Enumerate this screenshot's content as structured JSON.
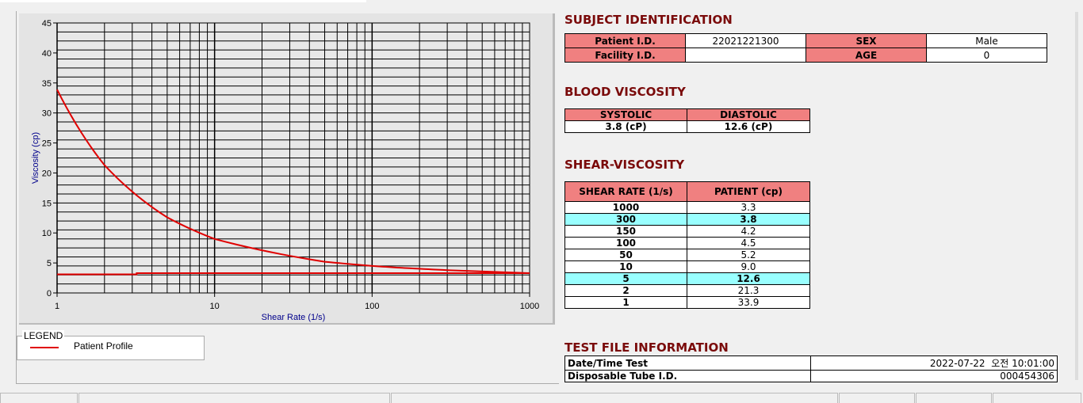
{
  "chart_data": {
    "type": "line",
    "xlabel": "Shear Rate (1/s)",
    "ylabel": "Viscosity (cp)",
    "xscale": "log",
    "xlim": [
      1,
      1000
    ],
    "ylim": [
      0,
      45
    ],
    "xticks": [
      "1",
      "10",
      "100",
      "1000"
    ],
    "yticks": [
      "0",
      "5",
      "10",
      "15",
      "20",
      "25",
      "30",
      "35",
      "40",
      "45"
    ],
    "grid": true,
    "legend_position": "below",
    "series": [
      {
        "name": "Patient Profile",
        "color": "#e00000",
        "x": [
          1,
          2,
          5,
          10,
          50,
          100,
          150,
          300,
          1000
        ],
        "y": [
          33.9,
          21.3,
          12.6,
          9.0,
          5.2,
          4.5,
          4.2,
          3.8,
          3.3
        ]
      },
      {
        "color": "#e00000",
        "x": [
          1,
          3.2,
          3.2,
          1000
        ],
        "y": [
          3.1,
          3.1,
          3.3,
          3.3
        ]
      }
    ]
  },
  "legend": {
    "title": "LEGEND",
    "items": [
      "Patient Profile"
    ]
  },
  "subject": {
    "title": "SUBJECT IDENTIFICATION",
    "patient_id_label": "Patient I.D.",
    "patient_id": "22021221300",
    "sex_label": "SEX",
    "sex": "Male",
    "facility_label": "Facility I.D.",
    "facility": "",
    "age_label": "AGE",
    "age": "0"
  },
  "blood": {
    "title": "BLOOD VISCOSITY",
    "systolic_label": "SYSTOLIC",
    "diastolic_label": "DIASTOLIC",
    "systolic": "3.8 (cP)",
    "diastolic": "12.6 (cP)"
  },
  "shear": {
    "title": "SHEAR-VISCOSITY",
    "col1": "SHEAR RATE (1/s)",
    "col2": "PATIENT (cp)",
    "highlight_color": "#99ffff",
    "rows": [
      [
        "1000",
        "3.3"
      ],
      [
        "300",
        "3.8"
      ],
      [
        "150",
        "4.2"
      ],
      [
        "100",
        "4.5"
      ],
      [
        "50",
        "5.2"
      ],
      [
        "10",
        "9.0"
      ],
      [
        "5",
        "12.6"
      ],
      [
        "2",
        "21.3"
      ],
      [
        "1",
        "33.9"
      ]
    ]
  },
  "testfile": {
    "title": "TEST FILE INFORMATION",
    "date_label": "Date/Time Test",
    "date": "2022-07-22  오전 10:01:00",
    "tube_label": "Disposable Tube I.D.",
    "tube": "000454306"
  }
}
